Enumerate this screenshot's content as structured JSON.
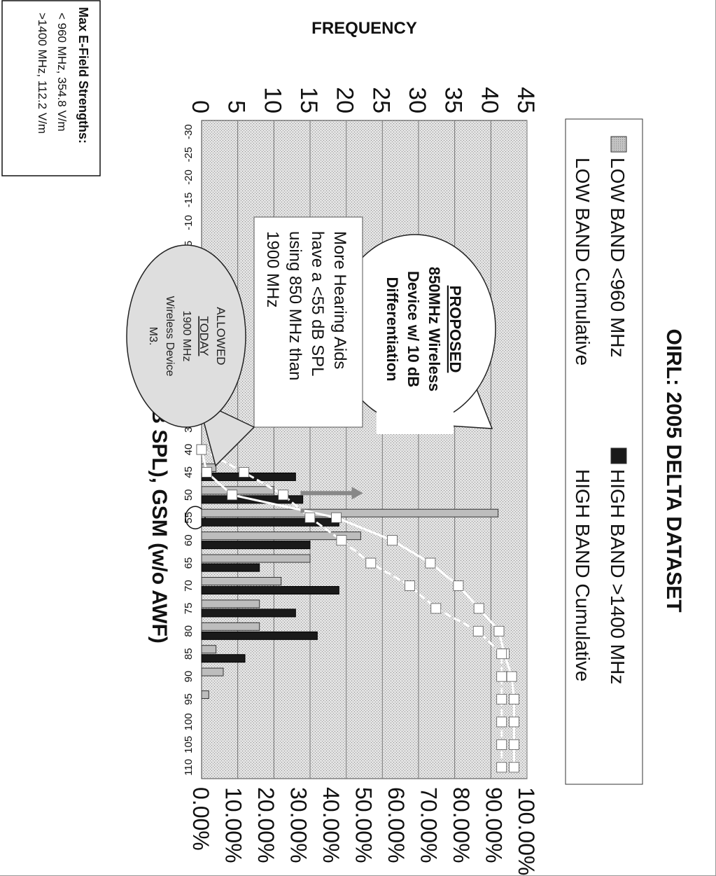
{
  "chart_data": {
    "type": "bar",
    "title": "OIRL: 2005 DELTA DATASET",
    "xlabel": "HA OIRL (dB SPL), GSM (w/o AWF)",
    "ylabel": "FREQUENCY",
    "y2label": "",
    "ylim": [
      0,
      45
    ],
    "y2lim": [
      0,
      100
    ],
    "yticks": [
      "0",
      "5",
      "10",
      "15",
      "20",
      "25",
      "30",
      "35",
      "40",
      "45"
    ],
    "y2ticks": [
      "0.00%",
      "10.00%",
      "20.00%",
      "30.00%",
      "40.00%",
      "50.00%",
      "60.00%",
      "70.00%",
      "80.00%",
      "90.00%",
      "100.00%"
    ],
    "categories": [
      "-30",
      "-25",
      "-20",
      "-15",
      "-10",
      "-5",
      "0",
      "5",
      "10",
      "15",
      "20",
      "25",
      "30",
      "35",
      "40",
      "45",
      "50",
      "55",
      "60",
      "65",
      "70",
      "75",
      "80",
      "85",
      "90",
      "95",
      "100",
      "105",
      "110"
    ],
    "highlighted_category": "55",
    "grid": true,
    "legend_placement": "top",
    "series": [
      {
        "name": "LOW BAND <960 MHz",
        "kind": "bar",
        "color": "#b8b8b8",
        "values": [
          0,
          0,
          0,
          0,
          0,
          0,
          0,
          0,
          0,
          0,
          0,
          0,
          0,
          0,
          0,
          2,
          10,
          41,
          22,
          15,
          11,
          8,
          8,
          2,
          3,
          1,
          0,
          0,
          0
        ]
      },
      {
        "name": "HIGH BAND >1400 MHz",
        "kind": "bar",
        "color": "#1a1a1a",
        "values": [
          0,
          0,
          0,
          0,
          0,
          0,
          0,
          0,
          0,
          0,
          0,
          0,
          0,
          0,
          0,
          13,
          14,
          19,
          15,
          8,
          19,
          13,
          16,
          6,
          0,
          0,
          0,
          0,
          0
        ]
      },
      {
        "name": "LOW BAND Cumulative",
        "kind": "line",
        "color": "#ffffff",
        "values": [
          0,
          0,
          0,
          0,
          0,
          0,
          0,
          0,
          0,
          0,
          0,
          0,
          0,
          0,
          0,
          1.6,
          9.4,
          41.4,
          58.6,
          70.3,
          78.9,
          85.2,
          91.4,
          93,
          95.3,
          96,
          96,
          96,
          96
        ]
      },
      {
        "name": "HIGH BAND Cumulative",
        "kind": "line",
        "color": "#ffffff",
        "values": [
          0,
          0,
          0,
          0,
          0,
          0,
          0,
          0,
          0,
          0,
          0,
          0,
          0,
          0,
          0,
          13,
          25.1,
          33.3,
          43,
          52,
          64,
          72,
          85,
          92.2,
          92.2,
          92.2,
          92.2,
          92.2,
          92.2
        ]
      }
    ],
    "annotations": [
      {
        "id": "proposed",
        "lines": [
          "PROPOSED",
          "850MHz  Wireless",
          "Device w/ 10 dB",
          "Differentiation"
        ]
      },
      {
        "id": "more",
        "lines": [
          "More Hearing Aids",
          "have a <55 dB SPL",
          "using 850 MHz than",
          "1900 MHz"
        ]
      },
      {
        "id": "allowed",
        "lines": [
          "ALLOWED",
          "TODAY",
          "1900 MHz",
          "Wireless Device",
          "M3."
        ]
      }
    ],
    "info_box": {
      "title": "Max E-Field Strengths:",
      "lines": [
        "< 960 MHz,  354.8 V/m",
        ">1400 MHz,  112.2 V/m"
      ]
    }
  }
}
